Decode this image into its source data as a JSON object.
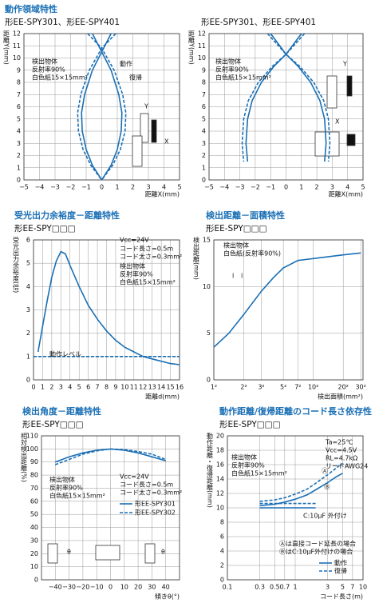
{
  "chart_data": [
    {
      "type": "line",
      "title": "動作領域特性",
      "subtitle": "形EE-SPY301、形EE-SPY401",
      "xlabel": "距離X(mm)",
      "ylabel": "距離Y(mm)",
      "xlim": [
        -5,
        5
      ],
      "ylim": [
        0,
        12
      ],
      "xticks": [
        {
          "value": -5,
          "label": "−5"
        },
        {
          "value": -4,
          "label": "−4"
        },
        {
          "value": -3,
          "label": "−3"
        },
        {
          "value": -2,
          "label": "−2"
        },
        {
          "value": -1,
          "label": "−1"
        },
        0,
        1,
        2,
        3,
        4,
        5
      ],
      "yticks": [
        0,
        1,
        2,
        3,
        4,
        5,
        6,
        7,
        8,
        9,
        10,
        11,
        12
      ],
      "grid": true,
      "series": [
        {
          "name": "動作",
          "color": "#1a6fb5",
          "linestyle": "solid",
          "x": [
            0.6,
            0,
            -0.6,
            -1.1,
            -1.3,
            -1.25,
            -1.0,
            -0.6,
            0,
            null,
            -0.6,
            0,
            0.6,
            1.1,
            1.3,
            1.25,
            1.0,
            0.6,
            0
          ],
          "y": [
            12,
            10.5,
            9,
            7,
            5.5,
            4,
            2.5,
            1.2,
            0,
            null,
            12,
            10.5,
            9,
            7,
            5.5,
            4,
            2.5,
            1.2,
            0
          ]
        },
        {
          "name": "復帰",
          "color": "#1a6fb5",
          "linestyle": "dashed",
          "x": [
            0.9,
            0,
            -0.8,
            -1.35,
            -1.55,
            -1.5,
            -1.2,
            -0.7,
            0,
            null,
            -0.9,
            0,
            0.8,
            1.35,
            1.55,
            1.5,
            1.2,
            0.7,
            0
          ],
          "y": [
            12,
            10.8,
            9,
            7,
            5.5,
            4,
            2.5,
            1.2,
            0,
            null,
            12,
            10.8,
            9,
            7,
            5.5,
            4,
            2.5,
            1.2,
            0
          ]
        }
      ],
      "annotations": [
        "検出物体",
        "反射率90%",
        "白色紙15×15mm²",
        "Y",
        "X"
      ]
    },
    {
      "type": "line",
      "subtitle": "形EE-SPY301、形EE-SPY401",
      "xlabel": "距離X(mm)",
      "ylabel": "距離Y(mm)",
      "xlim": [
        -5,
        5
      ],
      "ylim": [
        0,
        12
      ],
      "xticks": [
        {
          "value": -5,
          "label": "−5"
        },
        {
          "value": -4,
          "label": "−4"
        },
        {
          "value": -3,
          "label": "−3"
        },
        {
          "value": -2,
          "label": "−2"
        },
        {
          "value": -1,
          "label": "−1"
        },
        0,
        1,
        2,
        3,
        4,
        5
      ],
      "yticks": [
        0,
        1,
        2,
        3,
        4,
        5,
        6,
        7,
        8,
        9,
        10,
        11,
        12
      ],
      "grid": true,
      "series": [
        {
          "color": "#1a6fb5",
          "linestyle": "solid",
          "x": [
            1.0,
            0,
            -0.8,
            -1.6,
            -2.2,
            -2.5,
            -2.6,
            -2.5,
            null,
            -1.0,
            0,
            0.8,
            1.6,
            2.2,
            2.5,
            2.6,
            2.5
          ],
          "y": [
            12,
            10.3,
            9.3,
            8,
            6.5,
            5,
            3,
            1.5,
            null,
            12,
            10.3,
            9.3,
            8,
            6.5,
            5,
            3,
            1.5
          ]
        },
        {
          "color": "#1a6fb5",
          "linestyle": "dashed",
          "x": [
            1.2,
            0,
            -0.9,
            -1.8,
            -2.45,
            -2.75,
            -2.85,
            -2.75,
            null,
            -1.2,
            0,
            0.9,
            1.8,
            2.45,
            2.75,
            2.85,
            2.75
          ],
          "y": [
            12,
            10.3,
            9.3,
            8,
            6.5,
            5,
            3,
            1.5,
            null,
            12,
            10.3,
            9.3,
            8,
            6.5,
            5,
            3,
            1.5
          ]
        }
      ],
      "annotations": [
        "検出物体",
        "反射率90%",
        "白色紙15×15mm²",
        "Y",
        "X"
      ]
    },
    {
      "type": "line",
      "title": "受光出力余裕度－距離特性",
      "subtitle": "形EE-SPY□□□",
      "xlabel": "距離d(mm)",
      "ylabel": "受光出力余裕度(倍)",
      "xlim": [
        0,
        16
      ],
      "ylim": [
        0,
        6
      ],
      "xticks": [
        0,
        1,
        2,
        3,
        4,
        5,
        6,
        7,
        8,
        9,
        10,
        11,
        12,
        13,
        14,
        15,
        16
      ],
      "yticks": [
        0,
        1,
        2,
        3,
        4,
        5,
        6
      ],
      "grid": true,
      "series": [
        {
          "color": "#1a6fb5",
          "linestyle": "solid",
          "x": [
            0.5,
            1,
            1.5,
            2,
            2.5,
            3,
            3.5,
            4,
            5,
            6,
            7,
            8,
            9,
            10,
            11,
            12,
            13,
            14,
            15,
            16
          ],
          "y": [
            1.2,
            2.3,
            3.4,
            4.4,
            5.1,
            5.5,
            5.4,
            4.9,
            4.0,
            3.2,
            2.6,
            2.1,
            1.7,
            1.4,
            1.2,
            1.0,
            0.9,
            0.8,
            0.7,
            0.65
          ]
        },
        {
          "color": "#1a6fb5",
          "linestyle": "dashed",
          "x": [
            0,
            16
          ],
          "y": [
            1,
            1
          ]
        }
      ],
      "annotations": [
        "Vcc=24V",
        "コード長さ=0.5m",
        "コード太さ=0.3mm²",
        "検出物体",
        "反射率90%",
        "白色紙15×15mm²",
        "動作レベル"
      ]
    },
    {
      "type": "line",
      "title": "検出距離－面積特性",
      "subtitle": "形EE-SPY□□□",
      "xlabel": "検出面積(mm²)",
      "ylabel": "検出距離(mm)",
      "xscale": "log",
      "xlim": [
        1,
        1000
      ],
      "ylim": [
        0,
        15
      ],
      "xticks": [
        {
          "value": 1,
          "label": "1²"
        },
        {
          "value": 4,
          "label": "2²"
        },
        {
          "value": 9,
          "label": "3²"
        },
        {
          "value": 25,
          "label": "5²"
        },
        {
          "value": 49,
          "label": "7²"
        },
        {
          "value": 100,
          "label": "10²"
        },
        {
          "value": 400,
          "label": "20²"
        },
        {
          "value": 900,
          "label": "30²"
        }
      ],
      "yticks": [
        0,
        5,
        10,
        15
      ],
      "grid": true,
      "series": [
        {
          "color": "#1a6fb5",
          "linestyle": "solid",
          "x": [
            1,
            2,
            4,
            9,
            16,
            25,
            49,
            100,
            400,
            900
          ],
          "y": [
            3.5,
            5,
            7,
            9.5,
            11,
            12,
            12.8,
            13,
            13.4,
            13.6
          ]
        }
      ],
      "annotations": [
        "検出物体",
        "白色紙(反射率90%)",
        "l",
        "l"
      ]
    },
    {
      "type": "line",
      "title": "検出角度－距離特性",
      "subtitle": "形EE-SPY□□□",
      "xlabel": "傾きθ(°)",
      "ylabel": "相対検出距離(%)",
      "xlim": [
        -50,
        50
      ],
      "ylim": [
        0,
        110
      ],
      "xticks": [
        {
          "value": -40,
          "label": "−40"
        },
        {
          "value": -30,
          "label": "−30"
        },
        {
          "value": -20,
          "label": "−20"
        },
        {
          "value": -10,
          "label": "−10"
        },
        0,
        10,
        20,
        30,
        40
      ],
      "yticks": [
        0,
        10,
        20,
        30,
        40,
        50,
        60,
        70,
        80,
        90,
        100,
        110
      ],
      "grid": true,
      "series": [
        {
          "name": "形EE-SPY301",
          "color": "#1a6fb5",
          "linestyle": "solid",
          "x": [
            -40,
            -30,
            -20,
            -10,
            0,
            10,
            20,
            30,
            40
          ],
          "y": [
            90,
            94,
            97,
            99,
            100,
            99,
            97,
            94,
            91
          ]
        },
        {
          "name": "形EE-SPY302",
          "color": "#1a6fb5",
          "linestyle": "dashed",
          "x": [
            -40,
            -30,
            -20,
            -10,
            0,
            10,
            20,
            30,
            40
          ],
          "y": [
            88,
            92,
            96,
            98.5,
            100,
            99.5,
            98,
            96,
            92
          ]
        }
      ],
      "annotations": [
        "Vcc=24V",
        "コード長さ=0.5m",
        "コード太さ=0.3mm²",
        "検出物体",
        "反射率90%",
        "白色紙15×15mm²",
        "θ",
        "θ"
      ]
    },
    {
      "type": "line",
      "title": "動作距離/復帰距離のコード長さ依存性",
      "subtitle": "形EE-SPY□□□",
      "xlabel": "コード長さ(m)",
      "ylabel": "動作距離・復帰距離(mm)",
      "xscale": "log",
      "xlim": [
        0.1,
        10
      ],
      "ylim": [
        0,
        20
      ],
      "xticks": [
        0.1,
        0.3,
        0.5,
        0.7,
        1,
        3,
        5,
        7,
        10
      ],
      "yticks": [
        0,
        2,
        4,
        6,
        8,
        10,
        12,
        14,
        16,
        18,
        20
      ],
      "grid": true,
      "series": [
        {
          "name": "動作",
          "color": "#1a6fb5",
          "linestyle": "solid",
          "x": [
            0.3,
            0.5,
            0.7,
            1,
            1.5,
            2,
            3,
            4,
            5
          ],
          "y": [
            10.3,
            10.5,
            10.8,
            11.2,
            11.8,
            12.5,
            13.5,
            14.3,
            14.8
          ]
        },
        {
          "name": "復帰",
          "color": "#1a6fb5",
          "linestyle": "dashed",
          "x": [
            0.3,
            0.5,
            0.7,
            1,
            1.5,
            2,
            3,
            4,
            5
          ],
          "y": [
            10.9,
            11.1,
            11.4,
            11.9,
            12.6,
            13.4,
            14.6,
            15.5,
            16.2
          ]
        },
        {
          "color": "#1a6fb5",
          "linestyle": "solid",
          "x": [
            0.3,
            2
          ],
          "y": [
            10,
            10
          ]
        },
        {
          "color": "#1a6fb5",
          "linestyle": "dashed",
          "x": [
            0.3,
            2
          ],
          "y": [
            10.6,
            10.6
          ]
        }
      ],
      "annotations": [
        "Ta=25℃",
        "Vcc=4.5V",
        "RL=4.7kΩ",
        "リードAWG24",
        "検出物体",
        "反射率90%",
        "白色紙15×15mm²",
        "C:10μF 外付け",
        "Ⓐは直接コード延長の場合",
        "ⒷはC:10μF外付けの場合",
        "Ⓐ",
        "Ⓑ"
      ]
    }
  ]
}
